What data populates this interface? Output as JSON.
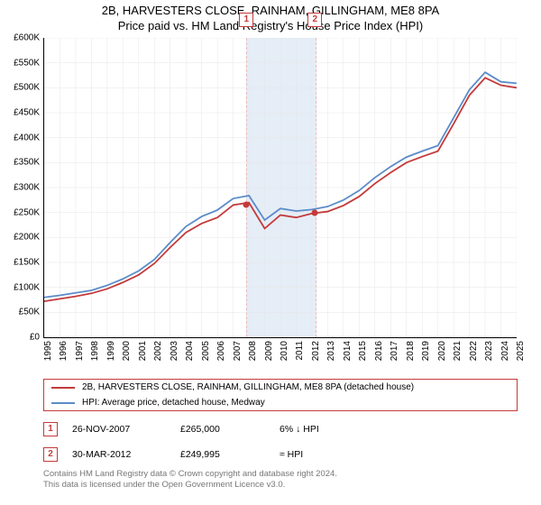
{
  "title_line1": "2B, HARVESTERS CLOSE, RAINHAM, GILLINGHAM, ME8 8PA",
  "title_line2": "Price paid vs. HM Land Registry's House Price Index (HPI)",
  "chart": {
    "type": "line",
    "x_years": [
      1995,
      1996,
      1997,
      1998,
      1999,
      2000,
      2001,
      2002,
      2003,
      2004,
      2005,
      2006,
      2007,
      2008,
      2009,
      2010,
      2011,
      2012,
      2013,
      2014,
      2015,
      2016,
      2017,
      2018,
      2019,
      2020,
      2021,
      2022,
      2023,
      2024,
      2025
    ],
    "y_ticks": [
      0,
      50000,
      100000,
      150000,
      200000,
      250000,
      300000,
      350000,
      400000,
      450000,
      500000,
      550000,
      600000
    ],
    "y_tick_labels": [
      "£0",
      "£50K",
      "£100K",
      "£150K",
      "£200K",
      "£250K",
      "£300K",
      "£350K",
      "£400K",
      "£450K",
      "£500K",
      "£550K",
      "£600K"
    ],
    "ylim": [
      0,
      600000
    ],
    "series": [
      {
        "name": "property",
        "color": "#c43a3a",
        "width": 1.8,
        "values": [
          72000,
          77000,
          82000,
          88000,
          97000,
          110000,
          125000,
          148000,
          180000,
          210000,
          228000,
          240000,
          265000,
          270000,
          218000,
          245000,
          240000,
          248000,
          252000,
          264000,
          282000,
          308000,
          330000,
          350000,
          362000,
          373000,
          428000,
          485000,
          520000,
          505000,
          500000
        ]
      },
      {
        "name": "hpi",
        "color": "#5b8cc9",
        "width": 1.6,
        "values": [
          80000,
          84000,
          89000,
          94000,
          104000,
          117000,
          133000,
          156000,
          190000,
          222000,
          242000,
          255000,
          278000,
          284000,
          235000,
          258000,
          253000,
          256000,
          262000,
          275000,
          294000,
          320000,
          342000,
          361000,
          373000,
          384000,
          440000,
          496000,
          531000,
          512000,
          509000
        ]
      }
    ],
    "shaded_band": {
      "x_start": 2007.9,
      "x_end": 2012.25
    },
    "event_markers": [
      {
        "id": "1",
        "x": 2007.9,
        "y": 265000
      },
      {
        "id": "2",
        "x": 2012.25,
        "y": 249995
      }
    ],
    "background": "#ffffff",
    "grid_color": "#e6e6e6"
  },
  "legend": [
    {
      "color": "#c43a3a",
      "label": "2B, HARVESTERS CLOSE, RAINHAM, GILLINGHAM, ME8 8PA (detached house)"
    },
    {
      "color": "#5b8cc9",
      "label": "HPI: Average price, detached house, Medway"
    }
  ],
  "events": [
    {
      "id": "1",
      "date": "26-NOV-2007",
      "price": "£265,000",
      "pct": "6% ↓ HPI"
    },
    {
      "id": "2",
      "date": "30-MAR-2012",
      "price": "£249,995",
      "pct": "≈ HPI"
    }
  ],
  "credits_line1": "Contains HM Land Registry data © Crown copyright and database right 2024.",
  "credits_line2": "This data is licensed under the Open Government Licence v3.0."
}
